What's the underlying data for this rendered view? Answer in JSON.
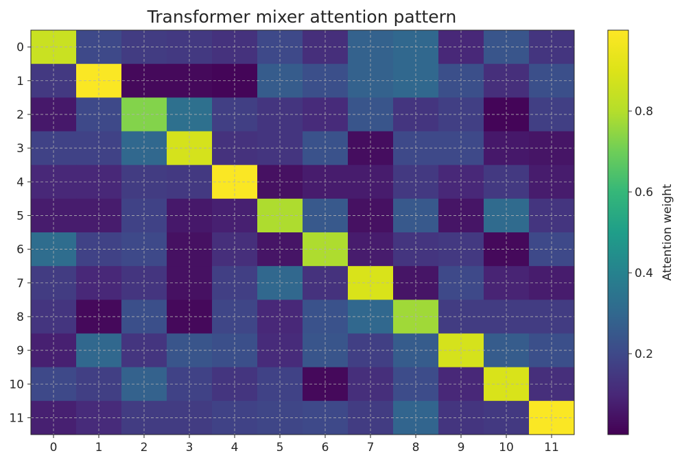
{
  "chart_data": {
    "type": "heatmap",
    "title": "Transformer mixer attention pattern",
    "x_tick_labels": [
      "0",
      "1",
      "2",
      "3",
      "4",
      "5",
      "6",
      "7",
      "8",
      "9",
      "10",
      "11"
    ],
    "y_tick_labels": [
      "0",
      "1",
      "2",
      "3",
      "4",
      "5",
      "6",
      "7",
      "8",
      "9",
      "10",
      "11"
    ],
    "colorbar": {
      "label": "Attention weight",
      "range": [
        0.0,
        1.0
      ],
      "ticks": [
        0.2,
        0.4,
        0.6,
        0.8
      ],
      "tick_labels": [
        "0.2",
        "0.4",
        "0.6",
        "0.8"
      ],
      "colormap": "viridis"
    },
    "grid": true,
    "values": [
      [
        0.85,
        0.2,
        0.16,
        0.15,
        0.13,
        0.2,
        0.12,
        0.28,
        0.3,
        0.1,
        0.24,
        0.14
      ],
      [
        0.15,
        0.99,
        0.02,
        0.02,
        0.01,
        0.26,
        0.22,
        0.28,
        0.3,
        0.22,
        0.12,
        0.22
      ],
      [
        0.06,
        0.2,
        0.73,
        0.33,
        0.17,
        0.14,
        0.11,
        0.24,
        0.14,
        0.17,
        0.01,
        0.17
      ],
      [
        0.18,
        0.18,
        0.3,
        0.88,
        0.13,
        0.14,
        0.23,
        0.03,
        0.2,
        0.2,
        0.06,
        0.05
      ],
      [
        0.1,
        0.1,
        0.16,
        0.15,
        0.99,
        0.04,
        0.07,
        0.07,
        0.15,
        0.1,
        0.15,
        0.07
      ],
      [
        0.07,
        0.07,
        0.18,
        0.06,
        0.08,
        0.79,
        0.25,
        0.04,
        0.25,
        0.05,
        0.31,
        0.14
      ],
      [
        0.32,
        0.18,
        0.2,
        0.04,
        0.12,
        0.05,
        0.79,
        0.07,
        0.14,
        0.15,
        0.02,
        0.2
      ],
      [
        0.16,
        0.1,
        0.14,
        0.04,
        0.17,
        0.3,
        0.13,
        0.89,
        0.05,
        0.2,
        0.09,
        0.07
      ],
      [
        0.14,
        0.02,
        0.22,
        0.02,
        0.19,
        0.1,
        0.23,
        0.3,
        0.77,
        0.16,
        0.16,
        0.16
      ],
      [
        0.08,
        0.3,
        0.14,
        0.24,
        0.22,
        0.11,
        0.24,
        0.17,
        0.26,
        0.88,
        0.26,
        0.22
      ],
      [
        0.2,
        0.17,
        0.28,
        0.18,
        0.14,
        0.18,
        0.02,
        0.12,
        0.21,
        0.1,
        0.89,
        0.12
      ],
      [
        0.08,
        0.11,
        0.16,
        0.16,
        0.18,
        0.19,
        0.2,
        0.16,
        0.29,
        0.14,
        0.15,
        0.99
      ]
    ]
  }
}
